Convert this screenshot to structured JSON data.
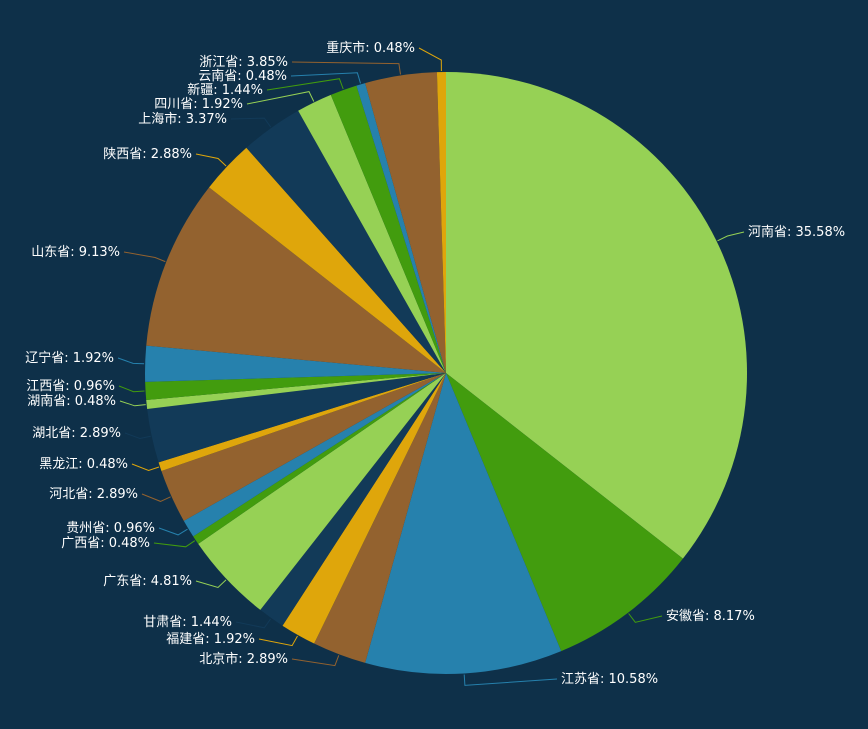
{
  "chart_data": {
    "type": "pie",
    "title": "",
    "start_angle_deg": 90,
    "direction": "clockwise",
    "legend": "none",
    "slices": [
      {
        "name": "河南省",
        "value": 35.58,
        "label": "河南省: 35.58%",
        "color": "#96d155"
      },
      {
        "name": "安徽省",
        "value": 8.17,
        "label": "安徽省: 8.17%",
        "color": "#429c0e"
      },
      {
        "name": "江苏省",
        "value": 10.58,
        "label": "江苏省: 10.58%",
        "color": "#2681ad"
      },
      {
        "name": "北京市",
        "value": 2.89,
        "label": "北京市: 2.89%",
        "color": "#93622f"
      },
      {
        "name": "福建省",
        "value": 1.92,
        "label": "福建省: 1.92%",
        "color": "#dfa60b"
      },
      {
        "name": "甘肃省",
        "value": 1.44,
        "label": "甘肃省: 1.44%",
        "color": "#123a58"
      },
      {
        "name": "广东省",
        "value": 4.81,
        "label": "广东省: 4.81%",
        "color": "#96d155"
      },
      {
        "name": "广西省",
        "value": 0.48,
        "label": "广西省: 0.48%",
        "color": "#429c0e"
      },
      {
        "name": "贵州省",
        "value": 0.96,
        "label": "贵州省: 0.96%",
        "color": "#2681ad"
      },
      {
        "name": "河北省",
        "value": 2.89,
        "label": "河北省: 2.89%",
        "color": "#93622f"
      },
      {
        "name": "黑龙江",
        "value": 0.48,
        "label": "黑龙江: 0.48%",
        "color": "#dfa60b"
      },
      {
        "name": "湖北省",
        "value": 2.89,
        "label": "湖北省: 2.89%",
        "color": "#123a58"
      },
      {
        "name": "湖南省",
        "value": 0.48,
        "label": "湖南省: 0.48%",
        "color": "#96d155"
      },
      {
        "name": "江西省",
        "value": 0.96,
        "label": "江西省: 0.96%",
        "color": "#429c0e"
      },
      {
        "name": "辽宁省",
        "value": 1.92,
        "label": "辽宁省: 1.92%",
        "color": "#2681ad"
      },
      {
        "name": "山东省",
        "value": 9.13,
        "label": "山东省: 9.13%",
        "color": "#93622f"
      },
      {
        "name": "陕西省",
        "value": 2.88,
        "label": "陕西省: 2.88%",
        "color": "#dfa60b"
      },
      {
        "name": "上海市",
        "value": 3.37,
        "label": "上海市: 3.37%",
        "color": "#123a58"
      },
      {
        "name": "四川省",
        "value": 1.92,
        "label": "四川省: 1.92%",
        "color": "#96d155"
      },
      {
        "name": "新疆",
        "value": 1.44,
        "label": "新疆: 1.44%",
        "color": "#429c0e"
      },
      {
        "name": "云南省",
        "value": 0.48,
        "label": "云南省: 0.48%",
        "color": "#2681ad"
      },
      {
        "name": "浙江省",
        "value": 3.85,
        "label": "浙江省: 3.85%",
        "color": "#93622f"
      },
      {
        "name": "重庆市",
        "value": 0.48,
        "label": "重庆市: 0.48%",
        "color": "#dfa60b"
      }
    ]
  }
}
